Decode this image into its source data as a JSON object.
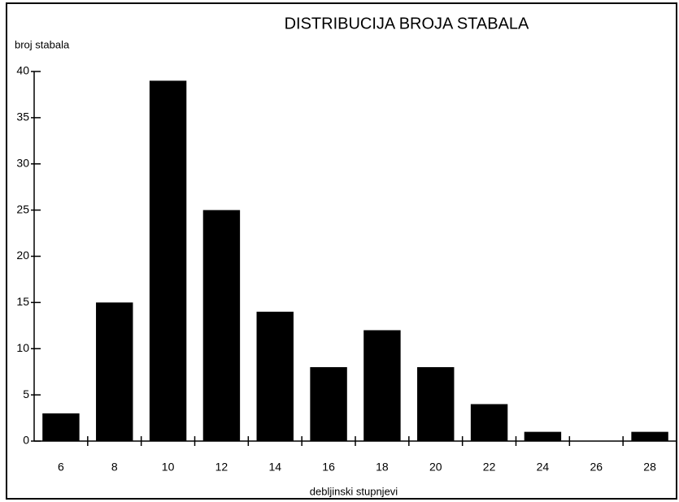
{
  "chart_data": {
    "type": "bar",
    "title": "DISTRIBUCIJA BROJA STABALA",
    "y_label": "broj stabala",
    "x_label": "debljinski stupnjevi",
    "categories": [
      "6",
      "8",
      "10",
      "12",
      "14",
      "16",
      "18",
      "20",
      "22",
      "24",
      "26",
      "28"
    ],
    "values": [
      3,
      15,
      39,
      25,
      14,
      8,
      12,
      8,
      4,
      1,
      0,
      1
    ],
    "color": "#000000",
    "ylim": [
      0,
      40
    ],
    "yticks": [
      0,
      5,
      10,
      15,
      20,
      25,
      30,
      35,
      40
    ],
    "grid": false
  }
}
